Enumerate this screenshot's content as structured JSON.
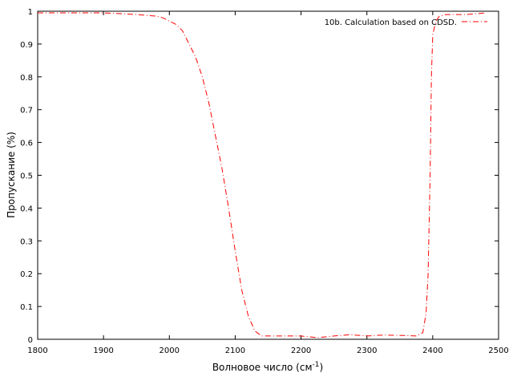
{
  "chart_data": {
    "type": "line",
    "xlabel": "Волновое число (см",
    "xlabel_superscript": "-1",
    "xlabel_suffix": ")",
    "ylabel": "Пропускание (%)",
    "xlim": [
      1800,
      2500
    ],
    "ylim": [
      0,
      1
    ],
    "xticks": [
      "1800",
      "1900",
      "2000",
      "2100",
      "2200",
      "2300",
      "2400",
      "2500"
    ],
    "yticks": [
      "0",
      "0.1",
      "0.2",
      "0.3",
      "0.4",
      "0.5",
      "0.6",
      "0.7",
      "0.8",
      "0.9",
      "1"
    ],
    "grid": false,
    "legend_position": "top-right",
    "series": [
      {
        "name": "10b. Calculation based on CDSD.",
        "color": "#ff0000",
        "line_style": "dash-dot",
        "x": [
          1800,
          1850,
          1900,
          1950,
          1980,
          1990,
          2000,
          2010,
          2020,
          2030,
          2040,
          2050,
          2060,
          2070,
          2080,
          2090,
          2100,
          2110,
          2120,
          2130,
          2140,
          2150,
          2175,
          2200,
          2225,
          2250,
          2275,
          2300,
          2325,
          2350,
          2375,
          2385,
          2390,
          2393,
          2396,
          2398,
          2400,
          2405,
          2410,
          2420,
          2450,
          2470,
          2480
        ],
        "y": [
          0.995,
          0.995,
          0.995,
          0.99,
          0.985,
          0.98,
          0.97,
          0.96,
          0.94,
          0.9,
          0.86,
          0.8,
          0.72,
          0.62,
          0.52,
          0.4,
          0.27,
          0.15,
          0.07,
          0.025,
          0.01,
          0.01,
          0.01,
          0.01,
          0.005,
          0.01,
          0.014,
          0.01,
          0.013,
          0.012,
          0.01,
          0.02,
          0.08,
          0.2,
          0.5,
          0.8,
          0.93,
          0.97,
          0.985,
          0.99,
          0.99,
          0.993,
          0.995
        ]
      }
    ]
  }
}
